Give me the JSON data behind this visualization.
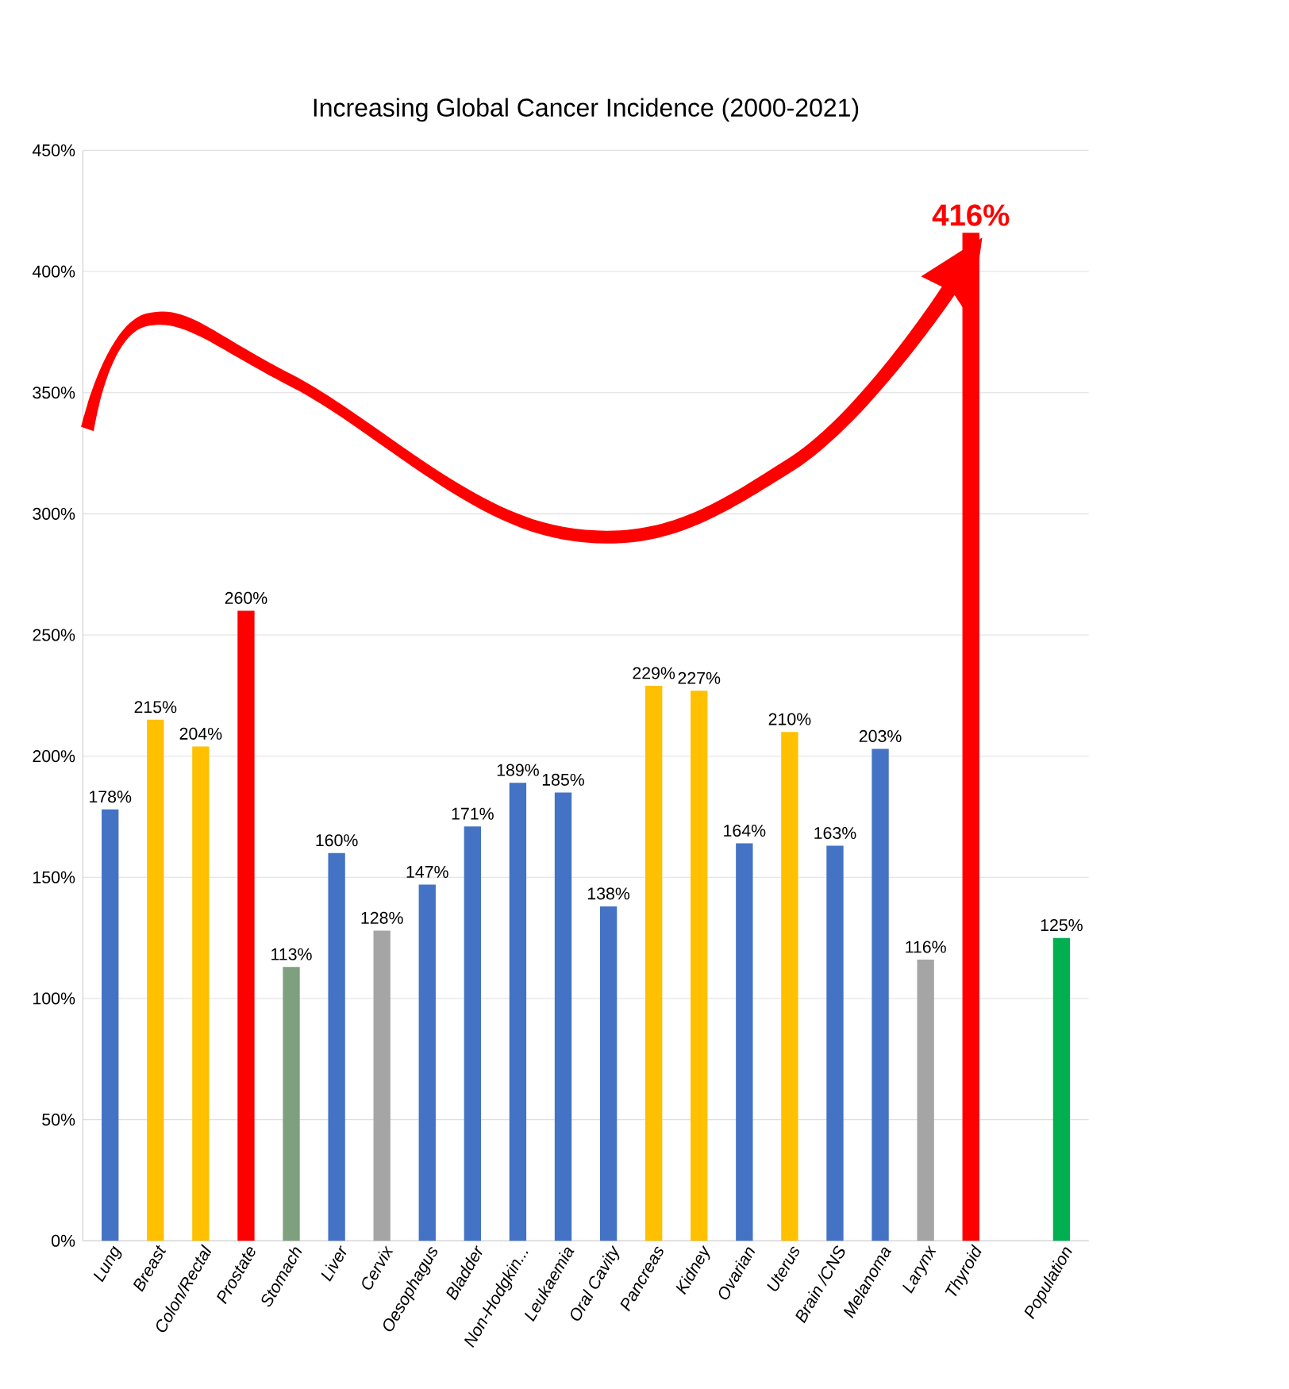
{
  "chart_data": {
    "type": "bar",
    "title": "Increasing Global Cancer Incidence (2000-2021)",
    "categories": [
      "Lung",
      "Breast",
      "Colon/Rectal",
      "Prostate",
      "Stomach",
      "Liver",
      "Cervix",
      "Oesophagus",
      "Bladder",
      "Non-Hodgkin...",
      "Leukaemia",
      "Oral Cavity",
      "Pancreas",
      "Kidney",
      "Ovarian",
      "Uterus",
      "Brain /CNS",
      "Melanoma",
      "Larynx",
      "Thyroid",
      null,
      "Population"
    ],
    "values": [
      178,
      215,
      204,
      260,
      113,
      160,
      128,
      147,
      171,
      189,
      185,
      138,
      229,
      227,
      164,
      210,
      163,
      203,
      116,
      416,
      null,
      125
    ],
    "colors": [
      "#4472c4",
      "#ffc000",
      "#ffc000",
      "#ff0000",
      "#7fa07f",
      "#4472c4",
      "#a5a5a5",
      "#4472c4",
      "#4472c4",
      "#4472c4",
      "#4472c4",
      "#4472c4",
      "#ffc000",
      "#ffc000",
      "#4472c4",
      "#ffc000",
      "#4472c4",
      "#4472c4",
      "#a5a5a5",
      "#ff0000",
      null,
      "#00b050"
    ],
    "value_labels": [
      "178%",
      "215%",
      "204%",
      "260%",
      "113%",
      "160%",
      "128%",
      "147%",
      "171%",
      "189%",
      "185%",
      "138%",
      "229%",
      "227%",
      "164%",
      "210%",
      "163%",
      "203%",
      "116%",
      "416%",
      null,
      "125%"
    ],
    "ylim": [
      0,
      450
    ],
    "yticks": [
      {
        "value": 0,
        "label": "0%"
      },
      {
        "value": 50,
        "label": "50%"
      },
      {
        "value": 100,
        "label": "100%"
      },
      {
        "value": 150,
        "label": "150%"
      },
      {
        "value": 200,
        "label": "200%"
      },
      {
        "value": 250,
        "label": "250%"
      },
      {
        "value": 300,
        "label": "300%"
      },
      {
        "value": 350,
        "label": "350%"
      },
      {
        "value": 400,
        "label": "400%"
      },
      {
        "value": 450,
        "label": "450%"
      }
    ],
    "grid": "y"
  }
}
